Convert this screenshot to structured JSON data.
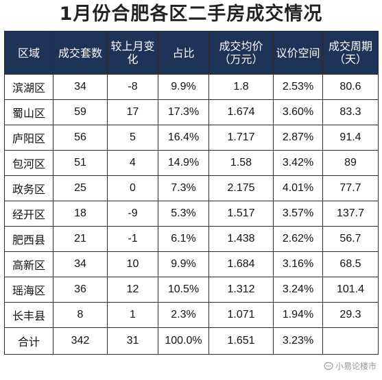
{
  "title": "1月份合肥各区二手房成交情况",
  "table": {
    "headers": [
      "区域",
      "成交套数",
      "较上月变化",
      "占比",
      "成交均价（万元）",
      "议价空间",
      "成交周期（天）"
    ],
    "rows": [
      [
        "滨湖区",
        "34",
        "-8",
        "9.9%",
        "1.8",
        "2.53%",
        "80.6"
      ],
      [
        "蜀山区",
        "59",
        "17",
        "17.3%",
        "1.674",
        "3.60%",
        "83.3"
      ],
      [
        "庐阳区",
        "56",
        "5",
        "16.4%",
        "1.717",
        "2.87%",
        "91.4"
      ],
      [
        "包河区",
        "51",
        "4",
        "14.9%",
        "1.58",
        "3.42%",
        "89"
      ],
      [
        "政务区",
        "25",
        "0",
        "7.3%",
        "2.175",
        "4.01%",
        "77.7"
      ],
      [
        "经开区",
        "18",
        "-9",
        "5.3%",
        "1.517",
        "3.57%",
        "137.7"
      ],
      [
        "肥西县",
        "21",
        "-1",
        "6.1%",
        "1.438",
        "2.62%",
        "56.7"
      ],
      [
        "高新区",
        "34",
        "10",
        "9.9%",
        "1.684",
        "3.16%",
        "68.5"
      ],
      [
        "瑶海区",
        "36",
        "12",
        "10.5%",
        "1.312",
        "3.24%",
        "101.4"
      ],
      [
        "长丰县",
        "8",
        "1",
        "2.3%",
        "1.071",
        "1.94%",
        "29.3"
      ]
    ],
    "total": [
      "合计",
      "342",
      "31",
      "100.0%",
      "1.651",
      "3.23%",
      ""
    ]
  },
  "watermark": {
    "text": "小易论楼市",
    "icon": "chat-bubble-icon"
  },
  "colors": {
    "header_bg": "#1e3358",
    "header_text": "#ffffff",
    "border": "#2b2b2b",
    "watermark": "#9a9a9a"
  }
}
